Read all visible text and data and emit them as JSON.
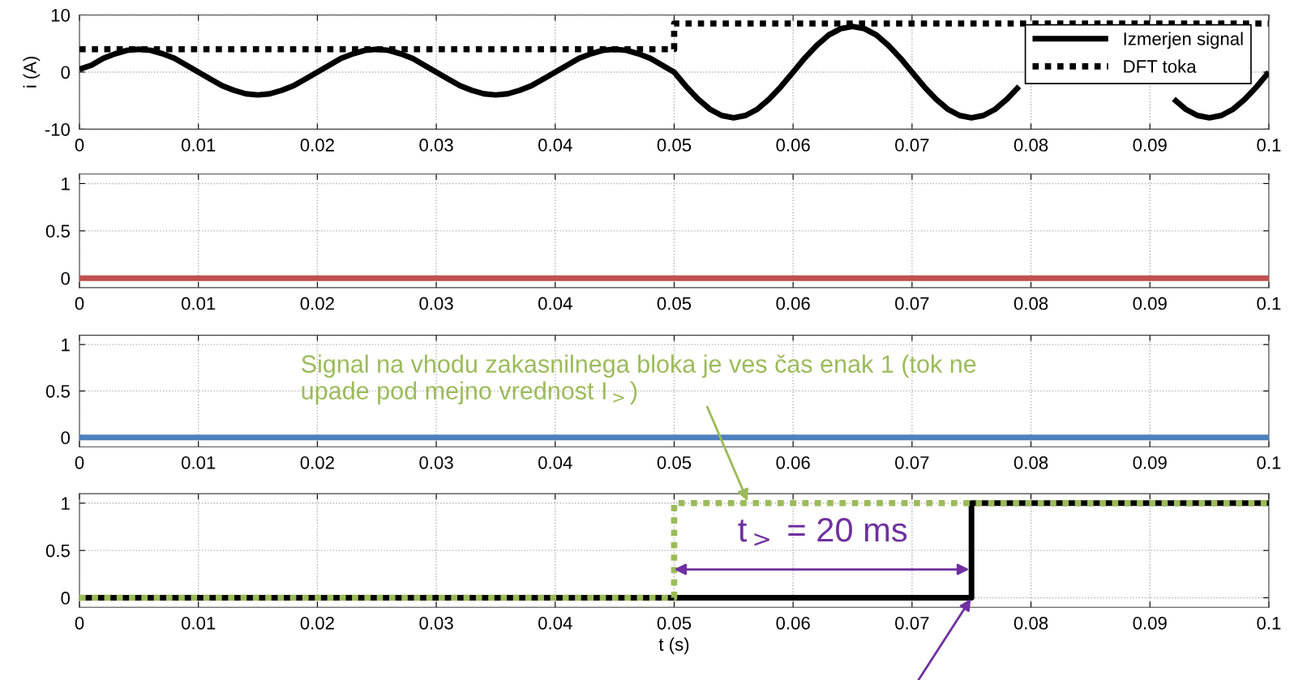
{
  "chart_data": [
    {
      "type": "line",
      "ylabel": "i (A)",
      "xlim": [
        0,
        0.1
      ],
      "xticks": [
        0,
        0.01,
        0.02,
        0.03,
        0.04,
        0.05,
        0.06,
        0.07,
        0.08,
        0.09,
        0.1
      ],
      "ylim": [
        -10,
        10
      ],
      "yticks": [
        -10,
        0,
        10
      ],
      "grid": true,
      "legend": "top right",
      "marker": "none",
      "series": [
        {
          "name": "Izmerjen signal",
          "color": "#000000",
          "line_style": "solid",
          "x": [
            0,
            0.001,
            0.002,
            0.003,
            0.004,
            0.005,
            0.006,
            0.007,
            0.008,
            0.009,
            0.01,
            0.011,
            0.012,
            0.013,
            0.014,
            0.015,
            0.016,
            0.017,
            0.018,
            0.019,
            0.02,
            0.021,
            0.022,
            0.023,
            0.024,
            0.025,
            0.026,
            0.027,
            0.028,
            0.029,
            0.03,
            0.031,
            0.032,
            0.033,
            0.034,
            0.035,
            0.036,
            0.037,
            0.038,
            0.039,
            0.04,
            0.041,
            0.042,
            0.043,
            0.044,
            0.045,
            0.046,
            0.047,
            0.048,
            0.049,
            0.05,
            0.051,
            0.052,
            0.053,
            0.054,
            0.055,
            0.056,
            0.057,
            0.058,
            0.059,
            0.06,
            0.061,
            0.062,
            0.063,
            0.064,
            0.065,
            0.066,
            0.067,
            0.068,
            0.069,
            0.07,
            0.071,
            0.072,
            0.073,
            0.074,
            0.075,
            0.076,
            0.077,
            0.078,
            0.079,
            0.08,
            0.081,
            0.082,
            0.083,
            0.084,
            0.085,
            0.086,
            0.087,
            0.088,
            0.089,
            0.09,
            0.091,
            0.092,
            0.093,
            0.094,
            0.095,
            0.096,
            0.097,
            0.098,
            0.099,
            0.1
          ],
          "values": [
            0.5,
            1.2,
            2.4,
            3.2,
            3.8,
            4,
            3.8,
            3.2,
            2.4,
            1.2,
            0,
            -1.2,
            -2.4,
            -3.2,
            -3.8,
            -4,
            -3.8,
            -3.2,
            -2.4,
            -1.2,
            0,
            1.2,
            2.4,
            3.2,
            3.8,
            4,
            3.8,
            3.2,
            2.4,
            1.2,
            0,
            -1.2,
            -2.4,
            -3.2,
            -3.8,
            -4,
            -3.8,
            -3.2,
            -2.4,
            -1.2,
            0,
            1.2,
            2.4,
            3.2,
            3.8,
            4,
            3.8,
            3.2,
            2.4,
            1.2,
            0,
            -2.5,
            -4.7,
            -6.5,
            -7.6,
            -8,
            -7.6,
            -6.5,
            -4.7,
            -2.5,
            0,
            2.5,
            4.7,
            6.5,
            7.6,
            8,
            7.6,
            6.5,
            4.7,
            2.5,
            0,
            -2.5,
            -4.7,
            -6.5,
            -7.6,
            -8,
            -7.6,
            -6.5,
            -4.7,
            -2.5,
            null,
            null,
            null,
            null,
            null,
            null,
            null,
            null,
            null,
            null,
            null,
            null,
            -4.7,
            -6.5,
            -7.6,
            -8,
            -7.6,
            -6.5,
            -4.7,
            -2.5,
            0
          ]
        },
        {
          "name": "DFT toka",
          "type": "step",
          "color": "#000000",
          "line_style": "dotted",
          "x": [
            0,
            0.05,
            0.1
          ],
          "values": [
            4,
            8.5,
            8.5
          ]
        }
      ]
    },
    {
      "type": "line",
      "xlim": [
        0,
        0.1
      ],
      "xticks": [
        0,
        0.01,
        0.02,
        0.03,
        0.04,
        0.05,
        0.06,
        0.07,
        0.08,
        0.09,
        0.1
      ],
      "ylim": [
        -0.1,
        1.1
      ],
      "yticks": [
        0,
        0.5,
        1
      ],
      "grid": true,
      "marker": "none",
      "series": [
        {
          "color": "#c0504d",
          "line_style": "solid",
          "x": [
            0,
            0.1
          ],
          "values": [
            0,
            0
          ]
        }
      ]
    },
    {
      "type": "line",
      "xlim": [
        0,
        0.1
      ],
      "xticks": [
        0,
        0.01,
        0.02,
        0.03,
        0.04,
        0.05,
        0.06,
        0.07,
        0.08,
        0.09,
        0.1
      ],
      "ylim": [
        -0.1,
        1.1
      ],
      "yticks": [
        0,
        0.5,
        1
      ],
      "grid": true,
      "marker": "none",
      "series": [
        {
          "color": "#4f81bd",
          "line_style": "solid",
          "x": [
            0,
            0.1
          ],
          "values": [
            0,
            0
          ]
        }
      ]
    },
    {
      "type": "step",
      "xlabel": "t (s)",
      "xlim": [
        0,
        0.1
      ],
      "xticks": [
        0,
        0.01,
        0.02,
        0.03,
        0.04,
        0.05,
        0.06,
        0.07,
        0.08,
        0.09,
        0.1
      ],
      "ylim": [
        -0.1,
        1.1
      ],
      "yticks": [
        0,
        0.5,
        1
      ],
      "grid": true,
      "marker": "none",
      "series": [
        {
          "color": "#000000",
          "line_style": "solid",
          "x": [
            0,
            0.075,
            0.1
          ],
          "values": [
            0,
            1,
            1
          ]
        },
        {
          "color": "#9bbb59",
          "line_style": "dotted",
          "x": [
            0,
            0.05,
            0.1
          ],
          "values": [
            0,
            1,
            1
          ]
        }
      ],
      "annotations": [
        "Signal na vhodu zakasnilnega bloka je ves čas enak 1 (tok ne upade pod mejno vrednost I$_{>}$)",
        "t$_{>}$ = 20 ms"
      ]
    }
  ]
}
